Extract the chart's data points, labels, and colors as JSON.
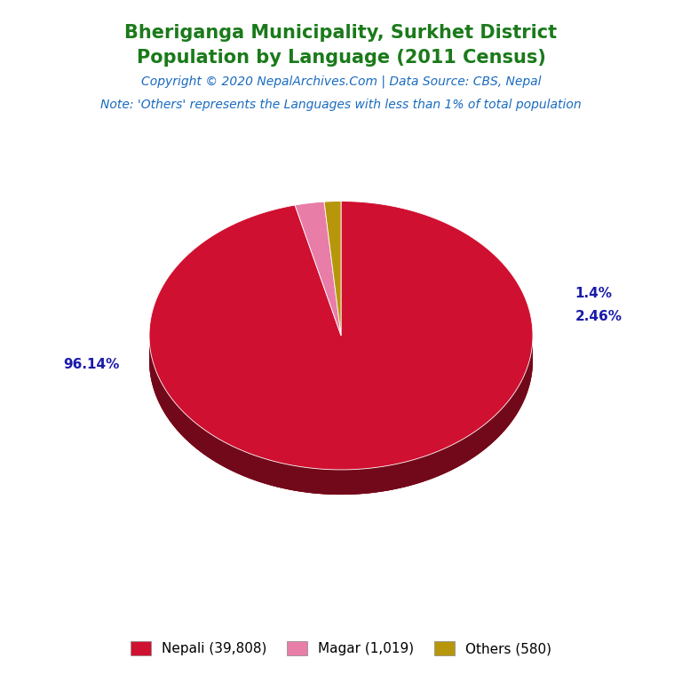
{
  "title_line1": "Bheriganga Municipality, Surkhet District",
  "title_line2": "Population by Language (2011 Census)",
  "copyright": "Copyright © 2020 NepalArchives.Com | Data Source: CBS, Nepal",
  "note": "Note: 'Others' represents the Languages with less than 1% of total population",
  "labels": [
    "Nepali (39,808)",
    "Magar (1,019)",
    "Others (580)"
  ],
  "values": [
    39808,
    1019,
    580
  ],
  "percentages": [
    96.14,
    2.46,
    1.4
  ],
  "colors": [
    "#D01030",
    "#E87DA8",
    "#B8960C"
  ],
  "title_color": "#1a7a1a",
  "copyright_color": "#1a6bbf",
  "note_color": "#1a6bbf",
  "label_color": "#1a1aaa",
  "background_color": "#ffffff"
}
